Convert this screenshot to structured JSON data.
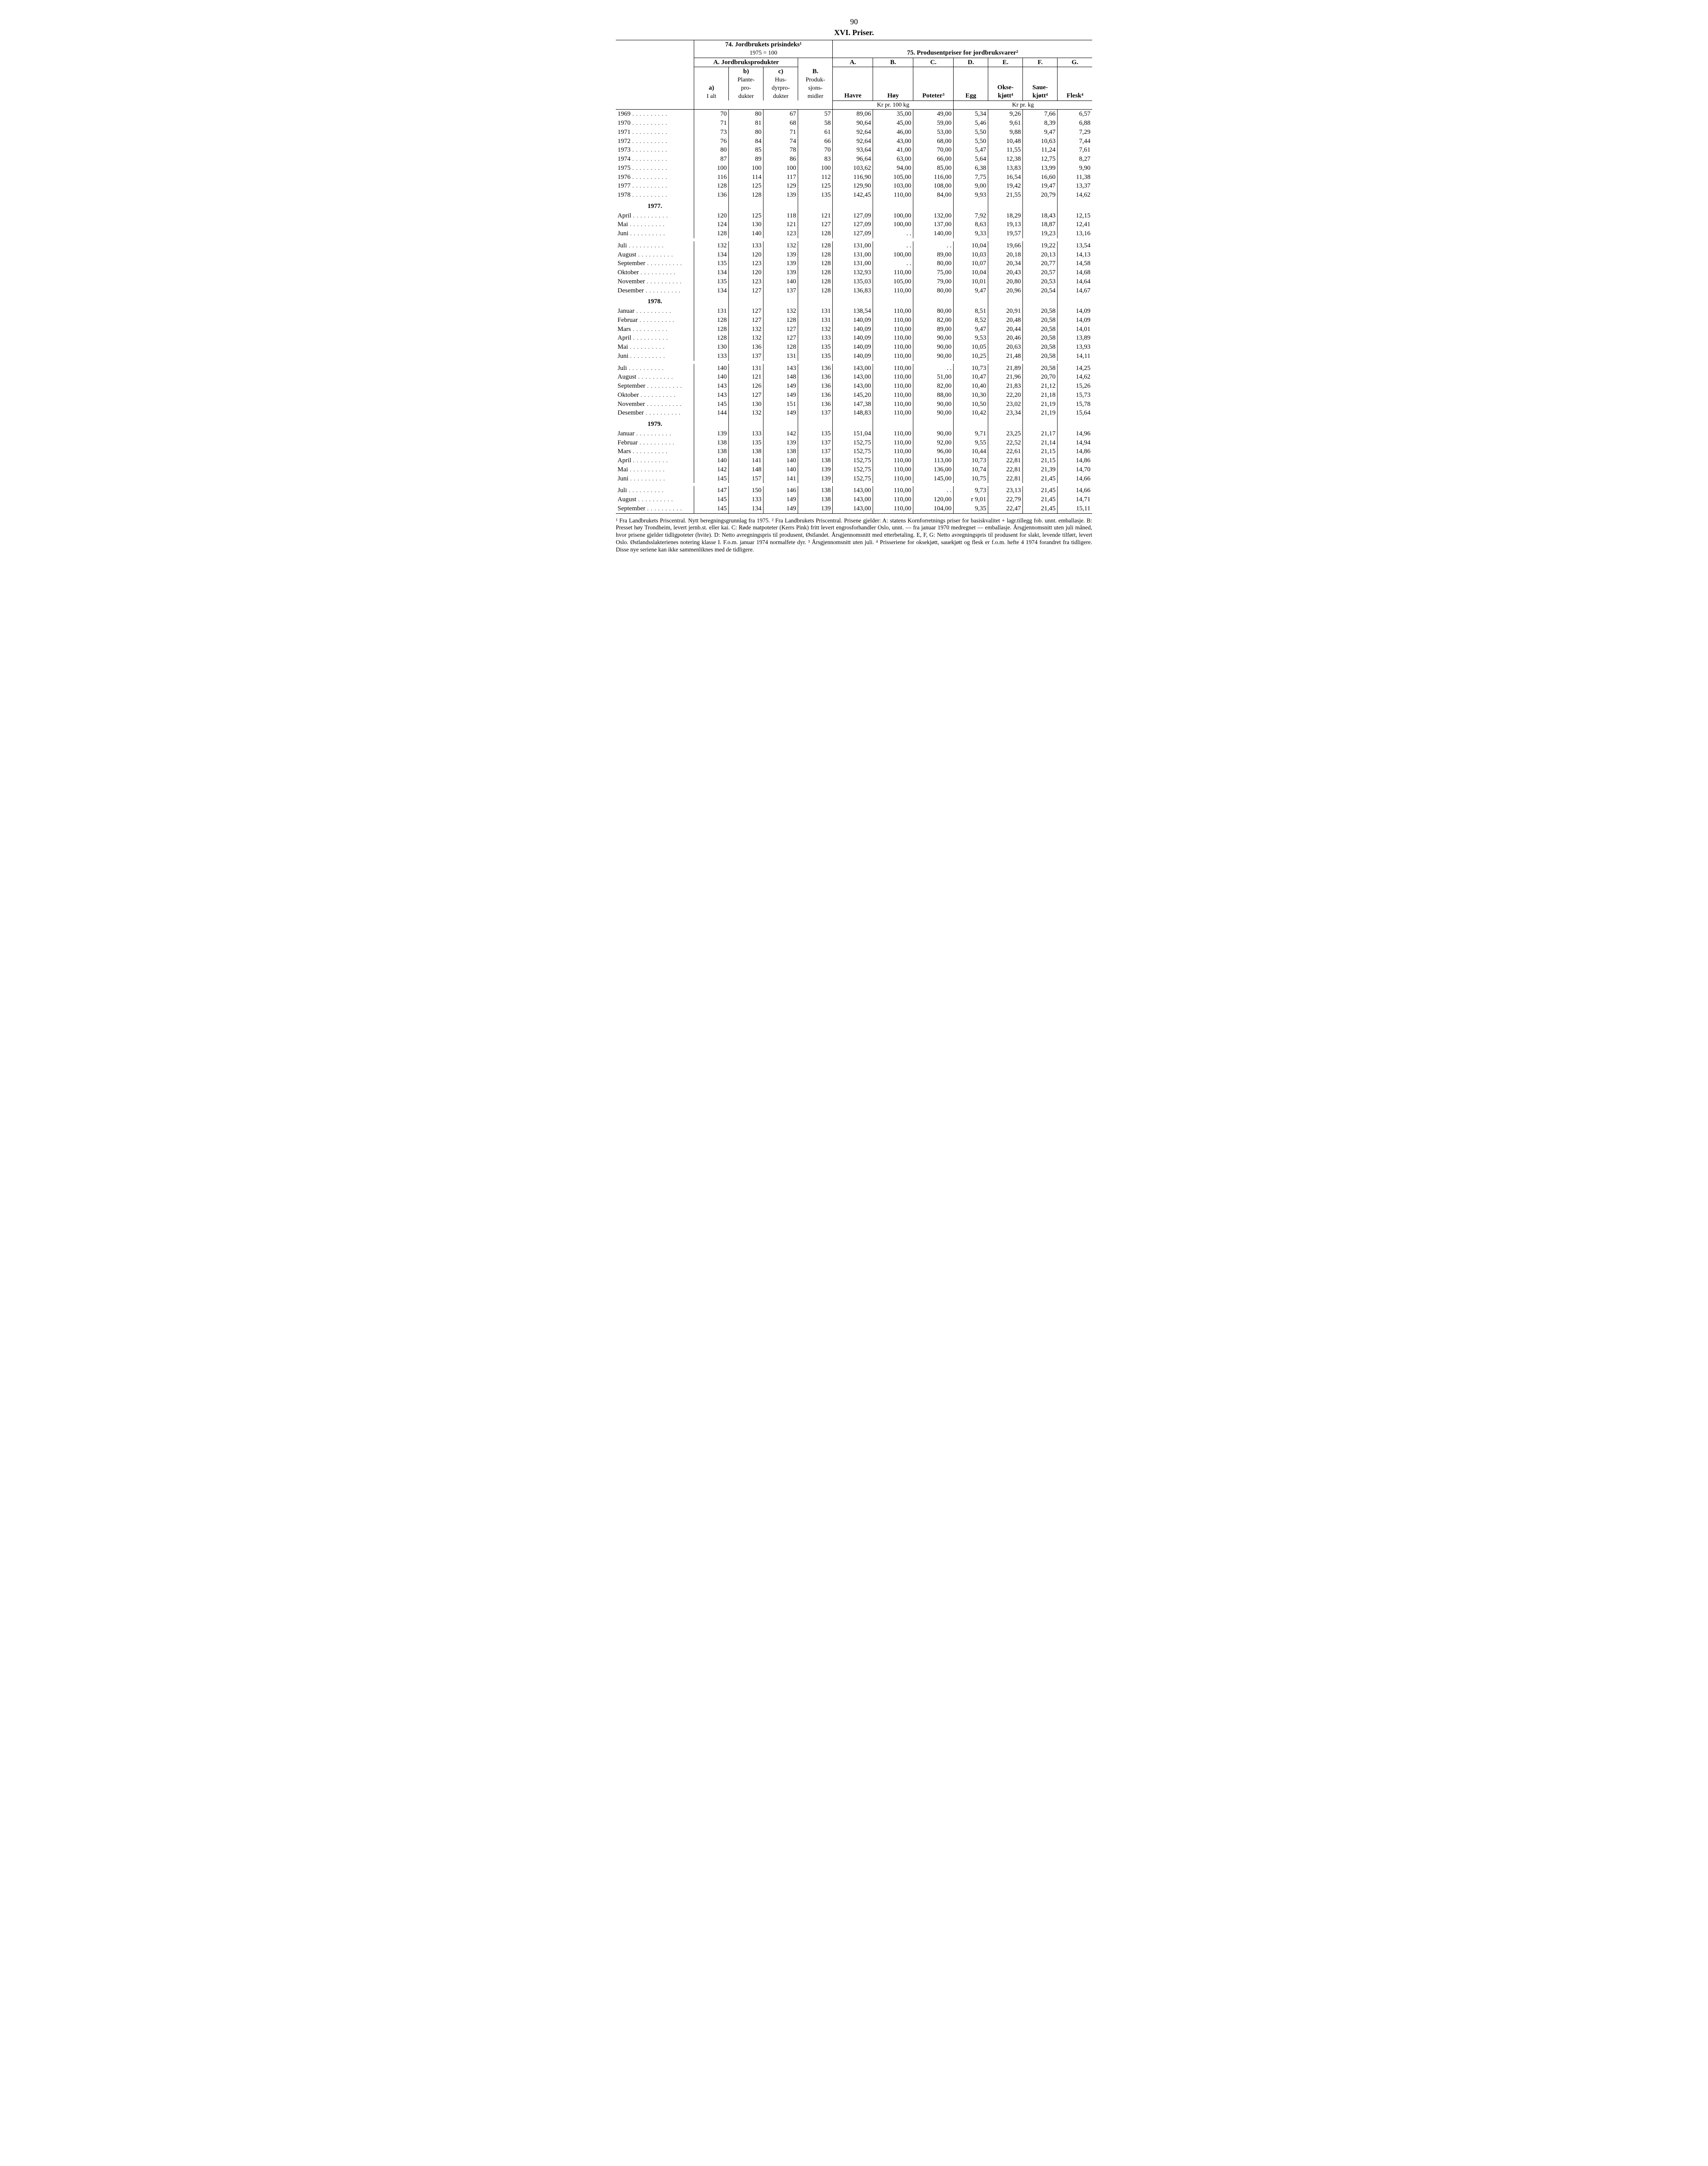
{
  "page_number": "90",
  "title": "XVI.  Priser.",
  "headers": {
    "t74": "74. Jordbrukets prisindeks¹",
    "t74_sub": "1975 = 100",
    "t75": "75. Produsentpriser for jordbruksvarer²",
    "A_grp": "A. Jordbruksprodukter",
    "a": "a)",
    "a2": "I alt",
    "b": "b)",
    "b2": "Plante-pro-dukter",
    "c": "c)",
    "c2": "Hus-dyrpro-dukter",
    "B": "B.",
    "B2": "Produk-sjons-midler",
    "ca": "A.",
    "cb": "B.",
    "cc": "C.",
    "cd": "D.",
    "ce": "E.",
    "cf": "F.",
    "cg": "G.",
    "havre": "Havre",
    "hoy": "Høy",
    "poteter": "Poteter³",
    "egg": "Egg",
    "okse": "Okse-kjøtt⁴",
    "saue": "Saue-kjøtt⁴",
    "flesk": "Flesk⁴",
    "kr100": "Kr pr. 100 kg",
    "krkg": "Kr pr. kg"
  },
  "rows": [
    {
      "l": "1969",
      "v": [
        "70",
        "80",
        "67",
        "57",
        "89,06",
        "35,00",
        "49,00",
        "5,34",
        "9,26",
        "7,66",
        "6,57"
      ]
    },
    {
      "l": "1970",
      "v": [
        "71",
        "81",
        "68",
        "58",
        "90,64",
        "45,00",
        "59,00",
        "5,46",
        "9,61",
        "8,39",
        "6,88"
      ]
    },
    {
      "l": "1971",
      "v": [
        "73",
        "80",
        "71",
        "61",
        "92,64",
        "46,00",
        "53,00",
        "5,50",
        "9,88",
        "9,47",
        "7,29"
      ]
    },
    {
      "l": "1972",
      "v": [
        "76",
        "84",
        "74",
        "66",
        "92,64",
        "43,00",
        "68,00",
        "5,50",
        "10,48",
        "10,63",
        "7,44"
      ]
    },
    {
      "l": "1973",
      "v": [
        "80",
        "85",
        "78",
        "70",
        "93,64",
        "41,00",
        "70,00",
        "5,47",
        "11,55",
        "11,24",
        "7,61"
      ]
    },
    {
      "l": "1974",
      "v": [
        "87",
        "89",
        "86",
        "83",
        "96,64",
        "63,00",
        "66,00",
        "5,64",
        "12,38",
        "12,75",
        "8,27"
      ]
    },
    {
      "l": "1975",
      "v": [
        "100",
        "100",
        "100",
        "100",
        "103,62",
        "94,00",
        "85,00",
        "6,38",
        "13,83",
        "13,99",
        "9,90"
      ]
    },
    {
      "l": "1976",
      "v": [
        "116",
        "114",
        "117",
        "112",
        "116,90",
        "105,00",
        "116,00",
        "7,75",
        "16,54",
        "16,60",
        "11,38"
      ]
    },
    {
      "l": "1977",
      "v": [
        "128",
        "125",
        "129",
        "125",
        "129,90",
        "103,00",
        "108,00",
        "9,00",
        "19,42",
        "19,47",
        "13,37"
      ]
    },
    {
      "l": "1978",
      "v": [
        "136",
        "128",
        "139",
        "135",
        "142,45",
        "110,00",
        "84,00",
        "9,93",
        "21,55",
        "20,79",
        "14,62"
      ]
    },
    {
      "y": "1977."
    },
    {
      "l": "April",
      "v": [
        "120",
        "125",
        "118",
        "121",
        "127,09",
        "100,00",
        "132,00",
        "7,92",
        "18,29",
        "18,43",
        "12,15"
      ]
    },
    {
      "l": "Mai",
      "v": [
        "124",
        "130",
        "121",
        "127",
        "127,09",
        "100,00",
        "137,00",
        "8,63",
        "19,13",
        "18,87",
        "12,41"
      ]
    },
    {
      "l": "Juni",
      "v": [
        "128",
        "140",
        "123",
        "128",
        "127,09",
        ". .",
        "140,00",
        "9,33",
        "19,57",
        "19,23",
        "13,16"
      ]
    },
    {
      "sp": true
    },
    {
      "l": "Juli",
      "v": [
        "132",
        "133",
        "132",
        "128",
        "131,00",
        ". .",
        ". .",
        "10,04",
        "19,66",
        "19,22",
        "13,54"
      ]
    },
    {
      "l": "August",
      "v": [
        "134",
        "120",
        "139",
        "128",
        "131,00",
        "100,00",
        "89,00",
        "10,03",
        "20,18",
        "20,13",
        "14,13"
      ]
    },
    {
      "l": "September",
      "v": [
        "135",
        "123",
        "139",
        "128",
        "131,00",
        ". .",
        "80,00",
        "10,07",
        "20,34",
        "20,77",
        "14,58"
      ]
    },
    {
      "l": "Oktober",
      "v": [
        "134",
        "120",
        "139",
        "128",
        "132,93",
        "110,00",
        "75,00",
        "10,04",
        "20,43",
        "20,57",
        "14,68"
      ]
    },
    {
      "l": "November",
      "v": [
        "135",
        "123",
        "140",
        "128",
        "135,03",
        "105,00",
        "79,00",
        "10,01",
        "20,80",
        "20,53",
        "14,64"
      ]
    },
    {
      "l": "Desember",
      "v": [
        "134",
        "127",
        "137",
        "128",
        "136,83",
        "110,00",
        "80,00",
        "9,47",
        "20,96",
        "20,54",
        "14,67"
      ]
    },
    {
      "y": "1978."
    },
    {
      "l": "Januar",
      "v": [
        "131",
        "127",
        "132",
        "131",
        "138,54",
        "110,00",
        "80,00",
        "8,51",
        "20,91",
        "20,58",
        "14,09"
      ]
    },
    {
      "l": "Februar",
      "v": [
        "128",
        "127",
        "128",
        "131",
        "140,09",
        "110,00",
        "82,00",
        "8,52",
        "20,48",
        "20,58",
        "14,09"
      ]
    },
    {
      "l": "Mars",
      "v": [
        "128",
        "132",
        "127",
        "132",
        "140,09",
        "110,00",
        "89,00",
        "9,47",
        "20,44",
        "20,58",
        "14,01"
      ]
    },
    {
      "l": "April",
      "v": [
        "128",
        "132",
        "127",
        "133",
        "140,09",
        "110,00",
        "90,00",
        "9,53",
        "20,46",
        "20,58",
        "13,89"
      ]
    },
    {
      "l": "Mai",
      "v": [
        "130",
        "136",
        "128",
        "135",
        "140,09",
        "110,00",
        "90,00",
        "10,05",
        "20,63",
        "20,58",
        "13,93"
      ]
    },
    {
      "l": "Juni",
      "v": [
        "133",
        "137",
        "131",
        "135",
        "140,09",
        "110,00",
        "90,00",
        "10,25",
        "21,48",
        "20,58",
        "14,11"
      ]
    },
    {
      "sp": true
    },
    {
      "l": "Juli",
      "v": [
        "140",
        "131",
        "143",
        "136",
        "143,00",
        "110,00",
        ". .",
        "10,73",
        "21,89",
        "20,58",
        "14,25"
      ]
    },
    {
      "l": "August",
      "v": [
        "140",
        "121",
        "148",
        "136",
        "143,00",
        "110,00",
        "51,00",
        "10,47",
        "21,96",
        "20,70",
        "14,62"
      ]
    },
    {
      "l": "September",
      "v": [
        "143",
        "126",
        "149",
        "136",
        "143,00",
        "110,00",
        "82,00",
        "10,40",
        "21,83",
        "21,12",
        "15,26"
      ]
    },
    {
      "l": "Oktober",
      "v": [
        "143",
        "127",
        "149",
        "136",
        "145,20",
        "110,00",
        "88,00",
        "10,30",
        "22,20",
        "21,18",
        "15,73"
      ]
    },
    {
      "l": "November",
      "v": [
        "145",
        "130",
        "151",
        "136",
        "147,38",
        "110,00",
        "90,00",
        "10,50",
        "23,02",
        "21,19",
        "15,78"
      ]
    },
    {
      "l": "Desember",
      "v": [
        "144",
        "132",
        "149",
        "137",
        "148,83",
        "110,00",
        "90,00",
        "10,42",
        "23,34",
        "21,19",
        "15,64"
      ]
    },
    {
      "y": "1979."
    },
    {
      "l": "Januar",
      "v": [
        "139",
        "133",
        "142",
        "135",
        "151,04",
        "110,00",
        "90,00",
        "9,71",
        "23,25",
        "21,17",
        "14,96"
      ]
    },
    {
      "l": "Februar",
      "v": [
        "138",
        "135",
        "139",
        "137",
        "152,75",
        "110,00",
        "92,00",
        "9,55",
        "22,52",
        "21,14",
        "14,94"
      ]
    },
    {
      "l": "Mars",
      "v": [
        "138",
        "138",
        "138",
        "137",
        "152,75",
        "110,00",
        "96,00",
        "10,44",
        "22,61",
        "21,15",
        "14,86"
      ]
    },
    {
      "l": "April",
      "v": [
        "140",
        "141",
        "140",
        "138",
        "152,75",
        "110,00",
        "113,00",
        "10,73",
        "22,81",
        "21,15",
        "14,86"
      ]
    },
    {
      "l": "Mai",
      "v": [
        "142",
        "148",
        "140",
        "139",
        "152,75",
        "110,00",
        "136,00",
        "10,74",
        "22,81",
        "21,39",
        "14,70"
      ]
    },
    {
      "l": "Juni",
      "v": [
        "145",
        "157",
        "141",
        "139",
        "152,75",
        "110,00",
        "145,00",
        "10,75",
        "22,81",
        "21,45",
        "14,66"
      ]
    },
    {
      "sp": true
    },
    {
      "l": "Juli",
      "v": [
        "147",
        "150",
        "146",
        "138",
        "143,00",
        "110,00",
        ". .",
        "9,73",
        "23,13",
        "21,45",
        "14,66"
      ]
    },
    {
      "l": "August",
      "v": [
        "145",
        "133",
        "149",
        "138",
        "143,00",
        "110,00",
        "120,00",
        "r  9,01",
        "22,79",
        "21,45",
        "14,71"
      ]
    },
    {
      "l": "September",
      "v": [
        "145",
        "134",
        "149",
        "139",
        "143,00",
        "110,00",
        "104,00",
        "9,35",
        "22,47",
        "21,45",
        "15,11"
      ]
    }
  ],
  "footnote": "¹ Fra Landbrukets Priscentral. Nytt beregningsgrunnlag fra 1975. ² Fra Landbrukets Priscentral. Prisene gjelder: A: statens Kornforretnings priser for basiskvalitet + lagr.tillegg fob. unnt. emballasje. B: Presset høy Trondheim, levert jernb.st. eller kai. C: Røde matpoteter (Kerrs Pink) fritt levert engrosforhandler Oslo, unnt. — fra januar 1970 medregnet — emballasje. Årsgjennomsnitt uten juli måned, hvor prisene gjelder tidligpoteter (hvite). D: Netto avregningspris til produsent, Østlandet. Årsgjennomsnitt med etterbetaling. E, F, G: Netto avregningspris til produsent for slakt, levende tilført, levert Oslo. Østlandsslakterienes notering klasse I. F.o.m. januar 1974 normalfete dyr. ³ Årsgjennomsnitt uten juli. ⁴ Prisseriene for oksekjøtt, sauekjøtt og flesk er f.o.m. hefte 4 1974 forandret fra tidligere. Disse nye seriene kan ikke sammenliknes med de tidligere."
}
